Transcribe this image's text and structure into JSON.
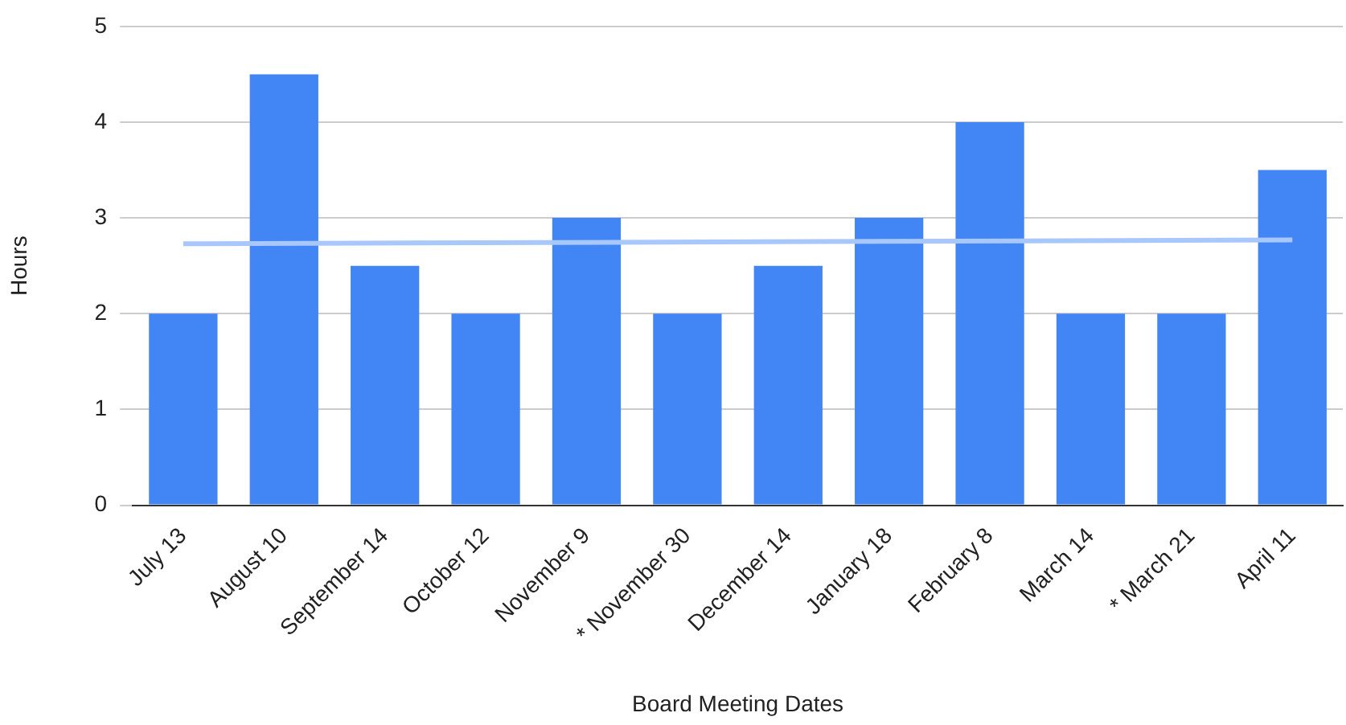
{
  "chart_data": {
    "type": "bar",
    "xlabel": "Board Meeting Dates",
    "ylabel": "Hours",
    "categories": [
      "July 13",
      "August 10",
      "September 14",
      "October 12",
      "November 9",
      "* November 30",
      "December 14",
      "January 18",
      "February 8",
      "March 14",
      "* March 21",
      "April 11"
    ],
    "series": [
      {
        "type": "bar",
        "color": "#4285f4",
        "values": [
          2,
          4.5,
          2.5,
          2,
          3,
          2,
          2.5,
          3,
          4,
          2,
          2,
          3.5
        ]
      },
      {
        "type": "line",
        "color": "#a8c7fa",
        "x": [
          "July 13",
          "April 11"
        ],
        "values": [
          2.73,
          2.77
        ]
      }
    ],
    "ylim": [
      0,
      5
    ],
    "yticks": [
      0,
      1,
      2,
      3,
      4,
      5
    ],
    "grid": "y",
    "legend": false
  }
}
